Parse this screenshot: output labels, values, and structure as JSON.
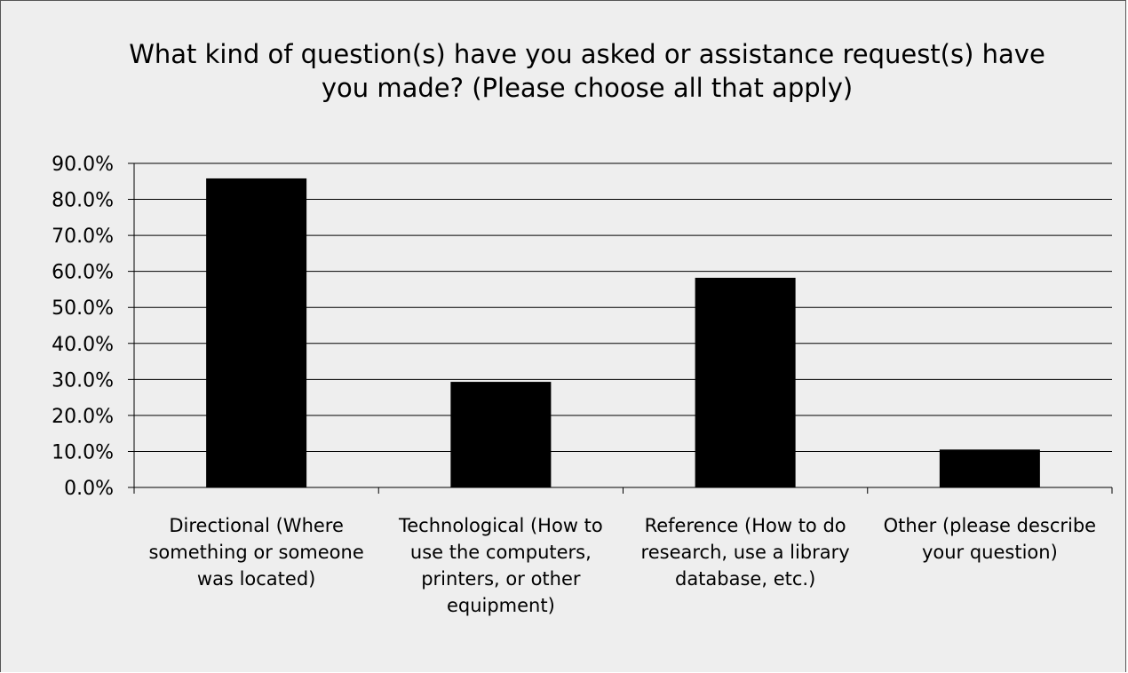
{
  "chart_data": {
    "type": "bar",
    "title_lines": [
      "What kind of question(s) have you asked or assistance request(s) have",
      "you made? (Please choose all that apply)"
    ],
    "categories": [
      [
        "Directional (Where",
        "something or someone",
        "was located)"
      ],
      [
        "Technological (How to",
        "use the computers,",
        "printers, or other",
        "equipment)"
      ],
      [
        "Reference (How to do",
        "research, use a library",
        "database, etc.)"
      ],
      [
        "Other (please describe",
        "your question)"
      ]
    ],
    "values": [
      85.7,
      29.2,
      58.1,
      10.4
    ],
    "ylim": [
      0,
      90
    ],
    "y_ticks": [
      "0.0%",
      "10.0%",
      "20.0%",
      "30.0%",
      "40.0%",
      "50.0%",
      "60.0%",
      "70.0%",
      "80.0%",
      "90.0%"
    ],
    "grid": true,
    "legend": "none",
    "colors": {
      "bar": "#000000",
      "background": "#eeeeee",
      "gridline": "#000000"
    }
  }
}
